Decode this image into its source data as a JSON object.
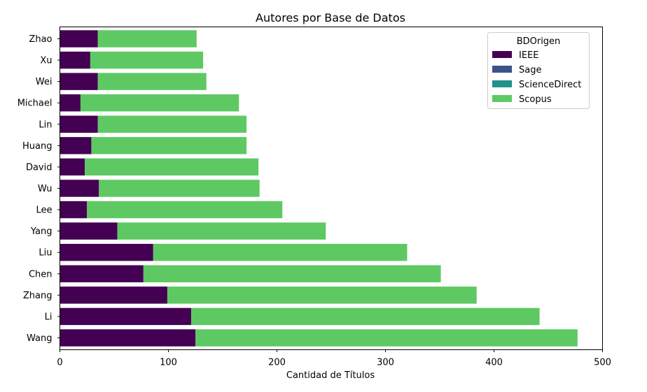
{
  "chart_data": {
    "type": "bar",
    "orientation": "horizontal",
    "stacked": true,
    "title": "Autores por Base de Datos",
    "xlabel": "Cantidad de Títulos",
    "ylabel": "",
    "xlim": [
      0,
      500
    ],
    "xticks": [
      0,
      100,
      200,
      300,
      400,
      500
    ],
    "grid": false,
    "categories": [
      "Wang",
      "Li",
      "Zhang",
      "Chen",
      "Liu",
      "Yang",
      "Lee",
      "Wu",
      "David",
      "Huang",
      "Lin",
      "Michael",
      "Wei",
      "Xu",
      "Zhao"
    ],
    "series": [
      {
        "name": "IEEE",
        "color": "#440154",
        "values": [
          125,
          121,
          99,
          77,
          86,
          53,
          25,
          36,
          23,
          29,
          35,
          19,
          35,
          28,
          35
        ]
      },
      {
        "name": "Sage",
        "color": "#3b528b",
        "values": [
          0,
          0,
          0,
          0,
          0,
          0,
          0,
          0,
          0,
          0,
          0,
          0,
          0,
          0,
          0
        ]
      },
      {
        "name": "ScienceDirect",
        "color": "#21918c",
        "values": [
          0,
          0,
          0,
          0,
          0,
          0,
          0,
          0,
          0,
          0,
          0,
          0,
          0,
          0,
          0
        ]
      },
      {
        "name": "Scopus",
        "color": "#5ec962",
        "values": [
          352,
          321,
          285,
          274,
          234,
          192,
          180,
          148,
          160,
          143,
          137,
          146,
          100,
          104,
          91
        ]
      }
    ],
    "legend": {
      "title": "BDOrigen",
      "placement": "upper-right"
    }
  }
}
